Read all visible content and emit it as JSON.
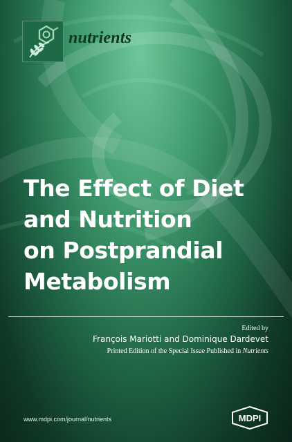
{
  "journal": {
    "name": "nutrients",
    "logo_icon": "journal-emblem-icon",
    "logo_bg": "#1e6a47"
  },
  "title": {
    "lines": [
      "The Effect of Diet",
      "and Nutrition",
      "on Postprandial",
      "Metabolism"
    ]
  },
  "credits": {
    "edited_by": "Edited by",
    "editors": "François Mariotti and Dominique Dardevet",
    "printed_edition_prefix": "Printed Edition of the Special Issue Published in",
    "printed_edition_journal": "Nutrients"
  },
  "footer": {
    "website": "www.mdpi.com/journal/nutrients",
    "publisher_logo": "MDPI"
  },
  "colors": {
    "background_light": "#6ec79a",
    "background_dark": "#0a2419",
    "text": "#ffffff",
    "journal_name": "#10361f"
  }
}
